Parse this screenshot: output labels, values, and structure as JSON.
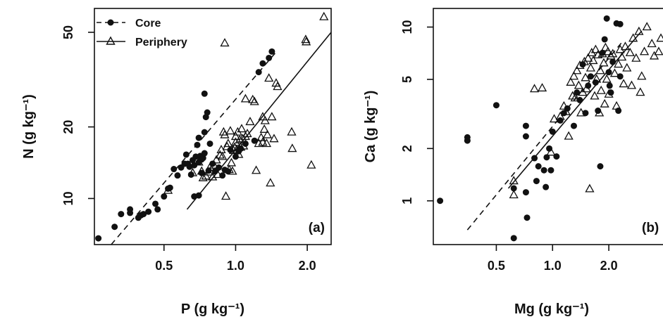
{
  "chart_data": [
    {
      "type": "scatter",
      "panel_label": "(a)",
      "xlabel": "P (g kg⁻¹)",
      "ylabel": "N (g kg⁻¹)",
      "x_scale": "log",
      "y_scale": "log",
      "xlim": [
        0.255,
        2.52
      ],
      "ylim": [
        6.4,
        63
      ],
      "x_ticks": [
        0.5,
        1.0,
        2.0
      ],
      "x_tick_labels": [
        "0.5",
        "1.0",
        "2.0"
      ],
      "y_ticks": [
        10,
        20,
        50
      ],
      "y_tick_labels": [
        "10",
        "20",
        "50"
      ],
      "legend": {
        "position": "top-left",
        "entries": [
          "Core",
          "Periphery"
        ]
      },
      "series": [
        {
          "name": "Core",
          "marker": "filled-circle",
          "line": "dashed",
          "fit_line": [
            [
              0.3,
              6.4
            ],
            [
              1.47,
              41
            ]
          ],
          "points": [
            [
              0.265,
              6.8
            ],
            [
              0.31,
              7.6
            ],
            [
              0.33,
              8.6
            ],
            [
              0.36,
              8.7
            ],
            [
              0.36,
              9.0
            ],
            [
              0.39,
              8.3
            ],
            [
              0.4,
              8.5
            ],
            [
              0.41,
              8.6
            ],
            [
              0.43,
              8.8
            ],
            [
              0.46,
              9.5
            ],
            [
              0.47,
              9.0
            ],
            [
              0.5,
              10.2
            ],
            [
              0.52,
              11.0
            ],
            [
              0.53,
              11.1
            ],
            [
              0.55,
              13.3
            ],
            [
              0.57,
              12.5
            ],
            [
              0.59,
              13.5
            ],
            [
              0.61,
              14.0
            ],
            [
              0.62,
              15.3
            ],
            [
              0.63,
              14.0
            ],
            [
              0.64,
              13.6
            ],
            [
              0.65,
              12.6
            ],
            [
              0.66,
              14.5
            ],
            [
              0.67,
              13.8
            ],
            [
              0.68,
              15.0
            ],
            [
              0.69,
              16.8
            ],
            [
              0.7,
              14.2
            ],
            [
              0.71,
              15.1
            ],
            [
              0.72,
              14.6
            ],
            [
              0.73,
              14.8
            ],
            [
              0.74,
              15.5
            ],
            [
              0.74,
              27.6
            ],
            [
              0.75,
              22.0
            ],
            [
              0.76,
              23.0
            ],
            [
              0.67,
              10.2
            ],
            [
              0.7,
              10.3
            ],
            [
              0.72,
              12.8
            ],
            [
              0.77,
              13.1
            ],
            [
              0.8,
              14.0
            ],
            [
              0.82,
              13.0
            ],
            [
              0.85,
              13.5
            ],
            [
              0.88,
              12.5
            ],
            [
              0.9,
              13.2
            ],
            [
              0.93,
              13.0
            ],
            [
              0.7,
              18.0
            ],
            [
              0.74,
              19.0
            ],
            [
              0.78,
              17.0
            ],
            [
              0.95,
              16.0
            ],
            [
              1.0,
              15.0
            ],
            [
              1.03,
              15.8
            ],
            [
              1.05,
              16.2
            ],
            [
              1.1,
              17.0
            ],
            [
              1.2,
              17.5
            ],
            [
              1.25,
              34.0
            ],
            [
              1.3,
              37.0
            ],
            [
              1.38,
              39.0
            ],
            [
              1.42,
              41.5
            ]
          ]
        },
        {
          "name": "Periphery",
          "marker": "open-triangle",
          "line": "solid",
          "fit_line": [
            [
              0.625,
              9.0
            ],
            [
              2.52,
              50
            ]
          ],
          "points": [
            [
              0.52,
              10.8
            ],
            [
              0.66,
              12.8
            ],
            [
              0.7,
              14.2
            ],
            [
              0.72,
              13.0
            ],
            [
              0.73,
              12.2
            ],
            [
              0.75,
              12.4
            ],
            [
              0.77,
              12.9
            ],
            [
              0.78,
              13.5
            ],
            [
              0.8,
              12.3
            ],
            [
              0.81,
              13.8
            ],
            [
              0.83,
              14.5
            ],
            [
              0.84,
              12.6
            ],
            [
              0.86,
              15.2
            ],
            [
              0.87,
              16.0
            ],
            [
              0.88,
              15.0
            ],
            [
              0.89,
              19.0
            ],
            [
              0.9,
              18.5
            ],
            [
              0.9,
              45.0
            ],
            [
              0.91,
              10.2
            ],
            [
              0.92,
              16.5
            ],
            [
              0.93,
              17.0
            ],
            [
              0.94,
              13.2
            ],
            [
              0.95,
              19.2
            ],
            [
              0.96,
              14.1
            ],
            [
              0.97,
              13.0
            ],
            [
              0.98,
              15.9
            ],
            [
              0.99,
              16.4
            ],
            [
              1.0,
              17.2
            ],
            [
              1.0,
              18.2
            ],
            [
              1.01,
              16.0
            ],
            [
              1.02,
              19.0
            ],
            [
              1.03,
              15.3
            ],
            [
              1.04,
              17.6
            ],
            [
              1.05,
              16.4
            ],
            [
              1.06,
              19.6
            ],
            [
              1.07,
              17.8
            ],
            [
              1.08,
              16.6
            ],
            [
              1.1,
              18.2
            ],
            [
              1.1,
              26.2
            ],
            [
              1.12,
              18.7
            ],
            [
              1.15,
              21.0
            ],
            [
              1.18,
              26.0
            ],
            [
              1.2,
              25.5
            ],
            [
              1.22,
              13.1
            ],
            [
              1.25,
              17.0
            ],
            [
              1.28,
              18.0
            ],
            [
              1.3,
              17.2
            ],
            [
              1.3,
              22.0
            ],
            [
              1.32,
              19.5
            ],
            [
              1.33,
              21.2
            ],
            [
              1.35,
              17.0
            ],
            [
              1.36,
              18.5
            ],
            [
              1.38,
              32.0
            ],
            [
              1.4,
              11.6
            ],
            [
              1.42,
              22.0
            ],
            [
              1.45,
              17.8
            ],
            [
              1.48,
              30.5
            ],
            [
              1.5,
              29.5
            ],
            [
              1.72,
              19.0
            ],
            [
              1.73,
              16.2
            ],
            [
              1.97,
              46.5
            ],
            [
              1.98,
              45.5
            ],
            [
              2.08,
              13.8
            ],
            [
              2.35,
              58.0
            ]
          ]
        }
      ]
    },
    {
      "type": "scatter",
      "panel_label": "(b)",
      "xlabel": "Mg (g kg⁻¹)",
      "ylabel": "Ca (g kg⁻¹)",
      "x_scale": "log",
      "y_scale": "log",
      "xlim": [
        0.23,
        3.9
      ],
      "ylim": [
        0.56,
        12.8
      ],
      "x_ticks": [
        0.5,
        1.0,
        2.0
      ],
      "x_tick_labels": [
        "0.5",
        "1.0",
        "2.0"
      ],
      "y_ticks": [
        1,
        2,
        5,
        10
      ],
      "y_tick_labels": [
        "1",
        "2",
        "5",
        "10"
      ],
      "legend": null,
      "series": [
        {
          "name": "Core",
          "marker": "filled-circle",
          "line": "dashed",
          "fit_line": [
            [
              0.35,
              0.68
            ],
            [
              2.4,
              8.4
            ]
          ],
          "points": [
            [
              0.25,
              1.0
            ],
            [
              0.35,
              2.32
            ],
            [
              0.35,
              2.22
            ],
            [
              0.5,
              3.55
            ],
            [
              0.62,
              1.18
            ],
            [
              0.62,
              0.61
            ],
            [
              0.72,
              2.7
            ],
            [
              0.72,
              2.35
            ],
            [
              0.72,
              1.12
            ],
            [
              0.73,
              0.8
            ],
            [
              0.8,
              1.76
            ],
            [
              0.82,
              1.3
            ],
            [
              0.84,
              1.58
            ],
            [
              0.9,
              1.5
            ],
            [
              0.92,
              1.2
            ],
            [
              0.93,
              1.78
            ],
            [
              0.96,
              2.0
            ],
            [
              0.98,
              1.5
            ],
            [
              1.0,
              2.5
            ],
            [
              1.05,
              1.8
            ],
            [
              1.1,
              2.9
            ],
            [
              1.15,
              3.2
            ],
            [
              1.2,
              3.4
            ],
            [
              1.3,
              2.7
            ],
            [
              1.35,
              4.2
            ],
            [
              1.4,
              3.8
            ],
            [
              1.45,
              6.1
            ],
            [
              1.5,
              3.2
            ],
            [
              1.55,
              4.6
            ],
            [
              1.6,
              5.2
            ],
            [
              1.7,
              4.8
            ],
            [
              1.75,
              3.3
            ],
            [
              1.8,
              1.58
            ],
            [
              1.85,
              7.1
            ],
            [
              1.9,
              8.5
            ],
            [
              1.95,
              11.2
            ],
            [
              2.0,
              5.5
            ],
            [
              2.02,
              4.6
            ],
            [
              2.05,
              4.2
            ],
            [
              2.1,
              6.3
            ],
            [
              2.2,
              10.5
            ],
            [
              2.25,
              3.3
            ],
            [
              2.3,
              10.4
            ],
            [
              2.3,
              5.2
            ]
          ]
        },
        {
          "name": "Periphery",
          "marker": "open-triangle",
          "line": "solid",
          "fit_line": [
            [
              0.58,
              1.18
            ],
            [
              3.0,
              9.5
            ]
          ],
          "points": [
            [
              0.62,
              1.08
            ],
            [
              0.62,
              1.3
            ],
            [
              0.8,
              4.4
            ],
            [
              0.88,
              4.45
            ],
            [
              0.98,
              1.9
            ],
            [
              1.02,
              2.95
            ],
            [
              1.1,
              3.05
            ],
            [
              1.15,
              3.5
            ],
            [
              1.18,
              3.25
            ],
            [
              1.22,
              2.35
            ],
            [
              1.25,
              4.8
            ],
            [
              1.28,
              4.0
            ],
            [
              1.3,
              5.2
            ],
            [
              1.32,
              3.9
            ],
            [
              1.35,
              5.6
            ],
            [
              1.38,
              4.6
            ],
            [
              1.4,
              6.0
            ],
            [
              1.42,
              3.2
            ],
            [
              1.45,
              4.2
            ],
            [
              1.48,
              6.3
            ],
            [
              1.5,
              5.1
            ],
            [
              1.52,
              4.4
            ],
            [
              1.55,
              6.6
            ],
            [
              1.58,
              1.17
            ],
            [
              1.6,
              5.8
            ],
            [
              1.62,
              7.1
            ],
            [
              1.65,
              6.4
            ],
            [
              1.68,
              4.0
            ],
            [
              1.7,
              7.4
            ],
            [
              1.72,
              5.0
            ],
            [
              1.75,
              6.9
            ],
            [
              1.78,
              3.2
            ],
            [
              1.8,
              5.6
            ],
            [
              1.82,
              4.3
            ],
            [
              1.85,
              7.0
            ],
            [
              1.88,
              6.2
            ],
            [
              1.9,
              3.6
            ],
            [
              1.92,
              7.6
            ],
            [
              1.95,
              5.0
            ],
            [
              1.98,
              7.2
            ],
            [
              2.0,
              4.1
            ],
            [
              2.05,
              6.8
            ],
            [
              2.1,
              7.0
            ],
            [
              2.15,
              5.4
            ],
            [
              2.2,
              3.5
            ],
            [
              2.25,
              6.1
            ],
            [
              2.3,
              7.4
            ],
            [
              2.35,
              6.7
            ],
            [
              2.4,
              4.7
            ],
            [
              2.45,
              7.7
            ],
            [
              2.5,
              5.8
            ],
            [
              2.6,
              7.1
            ],
            [
              2.65,
              4.6
            ],
            [
              2.7,
              8.6
            ],
            [
              2.8,
              6.6
            ],
            [
              2.9,
              9.4
            ],
            [
              2.95,
              4.2
            ],
            [
              3.0,
              5.2
            ],
            [
              3.1,
              7.2
            ],
            [
              3.2,
              10.0
            ],
            [
              3.4,
              8.0
            ],
            [
              3.5,
              6.8
            ],
            [
              3.7,
              7.2
            ],
            [
              3.8,
              8.6
            ]
          ]
        }
      ]
    }
  ]
}
